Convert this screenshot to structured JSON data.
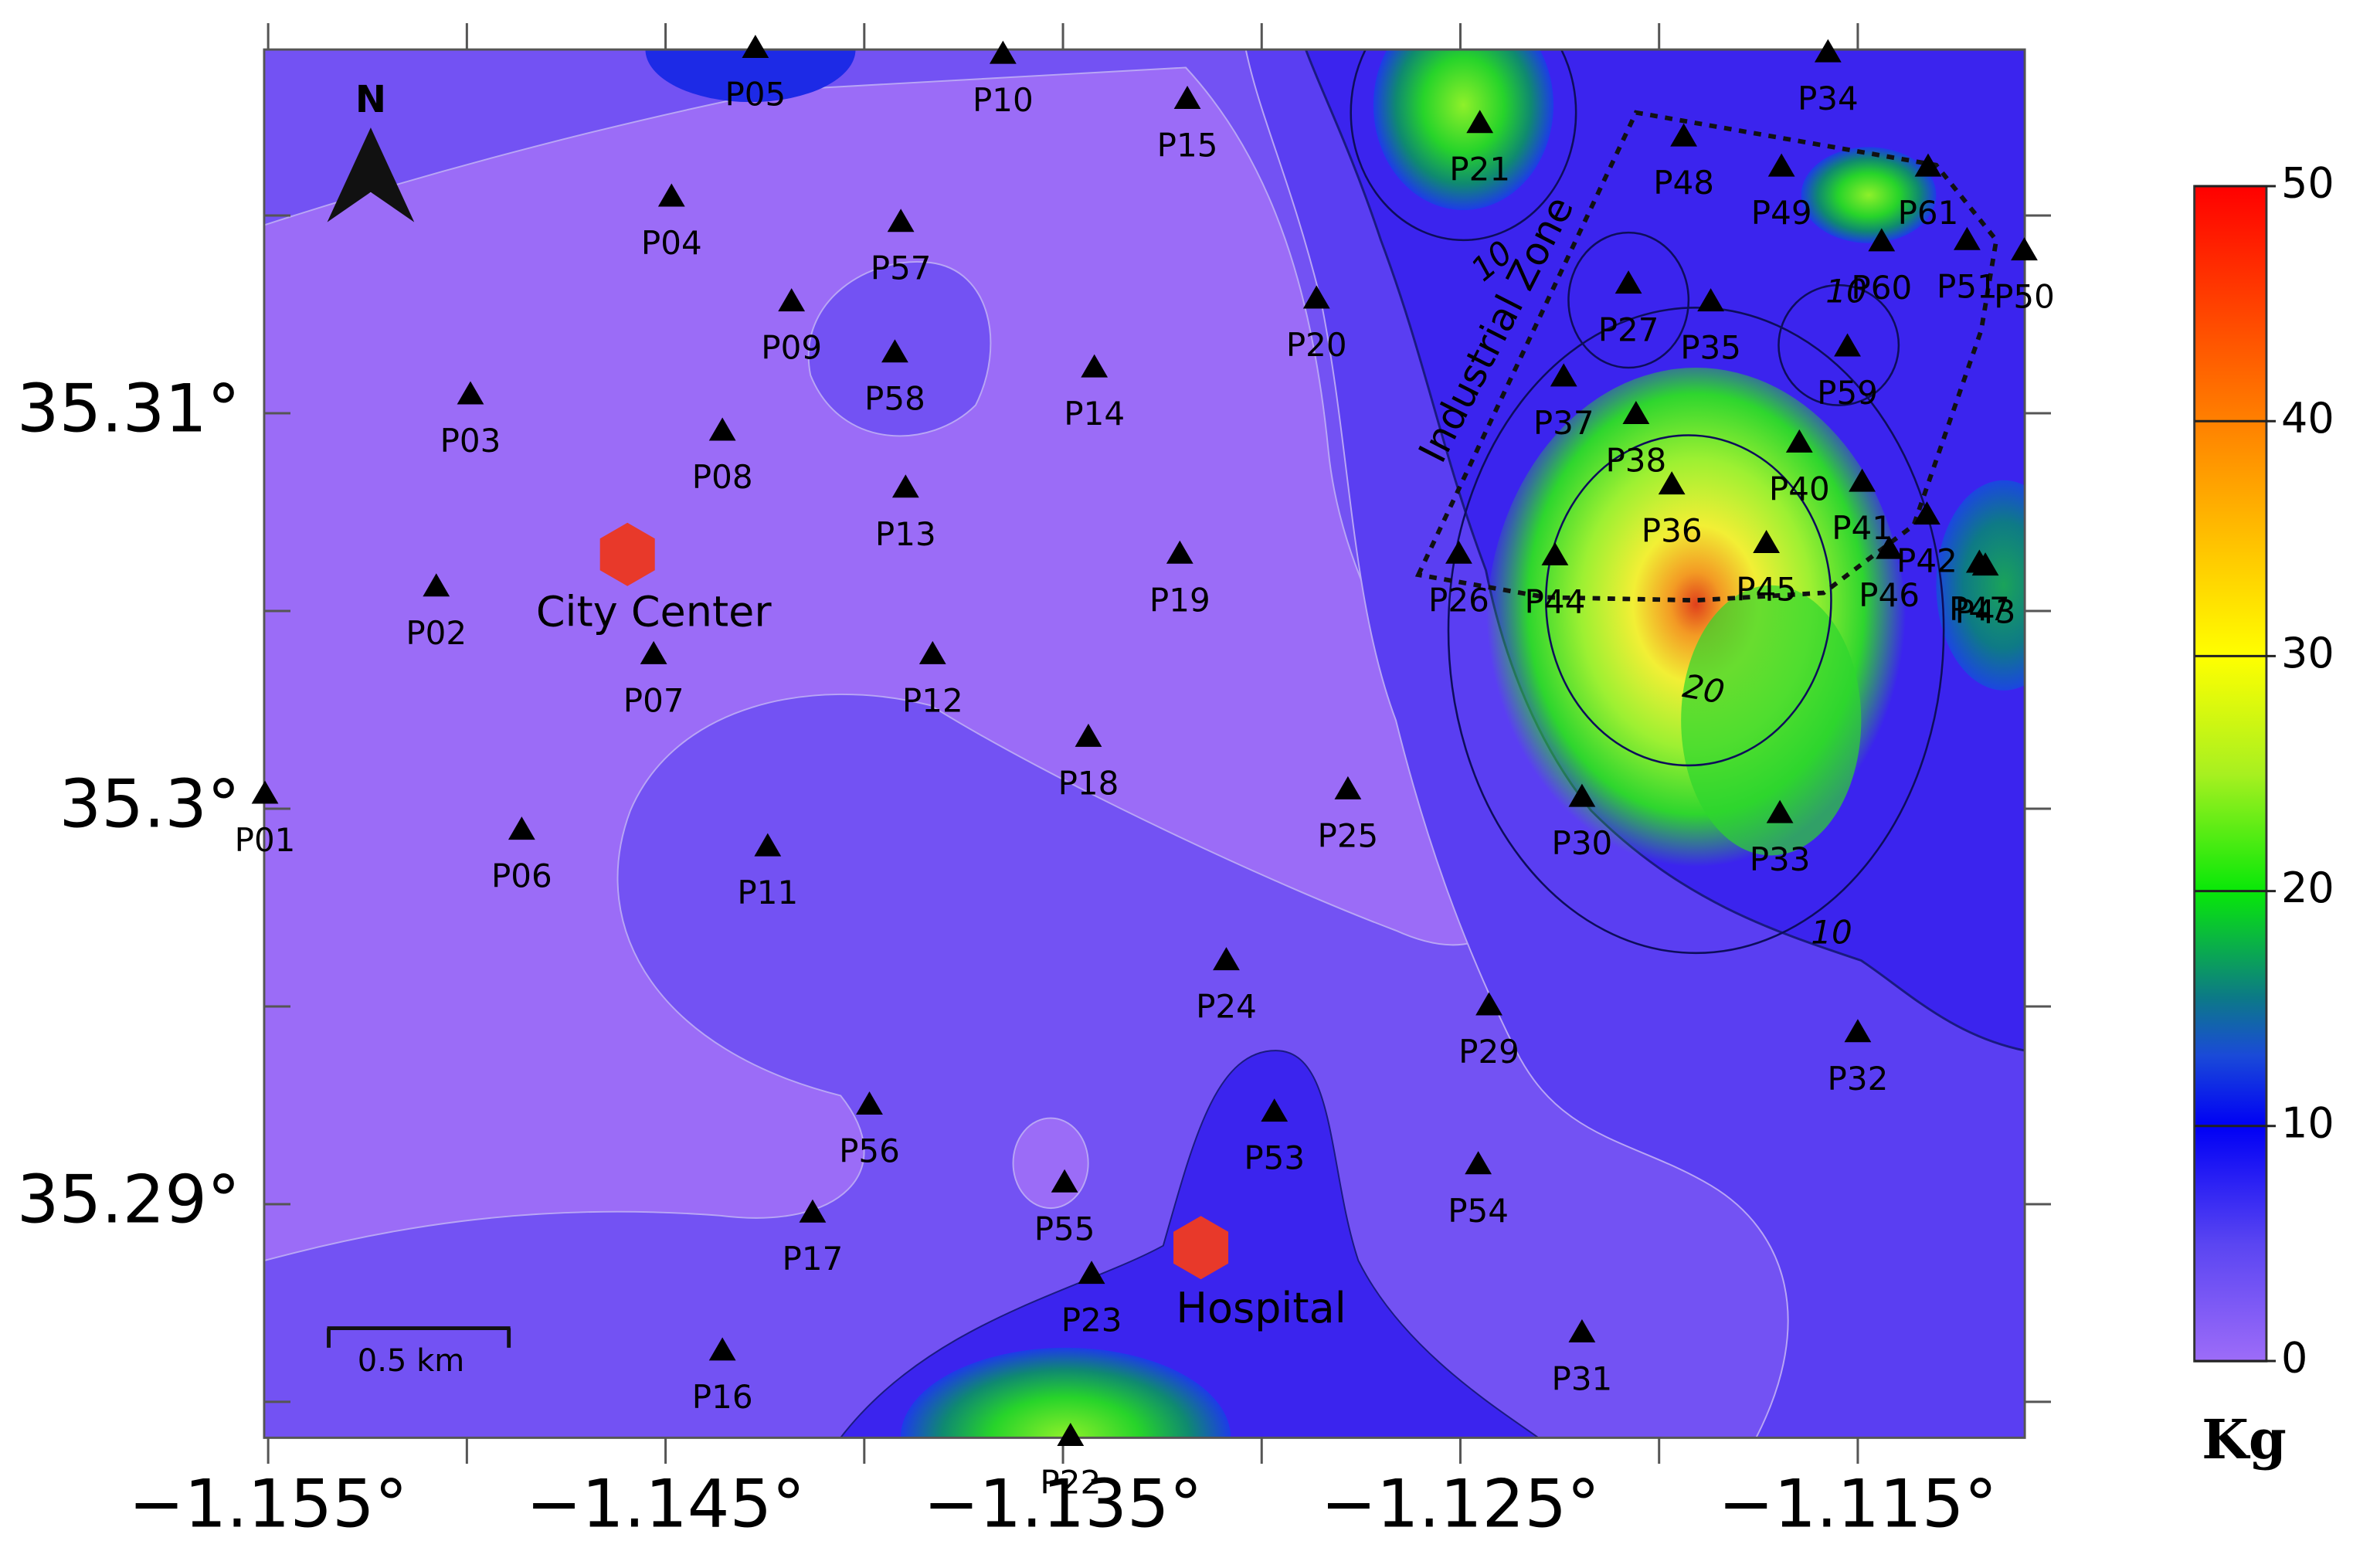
{
  "map": {
    "north": "N",
    "scale_label": "0.5 km",
    "zone_label": "Industrial Zone",
    "xlim": [
      -1.1551,
      -1.1108
    ],
    "ylim": [
      35.2841,
      35.3192
    ],
    "xticks": [
      {
        "value": -1.155,
        "label": "−1.155°"
      },
      {
        "value": -1.145,
        "label": "−1.145°"
      },
      {
        "value": -1.135,
        "label": "−1.135°"
      },
      {
        "value": -1.125,
        "label": "−1.125°"
      },
      {
        "value": -1.115,
        "label": "−1.115°"
      }
    ],
    "xminor": [
      -1.15,
      -1.14,
      -1.13,
      -1.12
    ],
    "yticks": [
      {
        "value": 35.31,
        "label": "35.31°"
      },
      {
        "value": 35.3,
        "label": "35.3°"
      },
      {
        "value": 35.29,
        "label": "35.29°"
      }
    ],
    "yminor": [
      35.285,
      35.295,
      35.305,
      35.315
    ],
    "landmarks": [
      {
        "label": "City Center",
        "lon": -1.14596,
        "lat": 35.30643,
        "color": "#e8392a"
      },
      {
        "label": "Hospital",
        "lon": -1.13153,
        "lat": 35.2889,
        "color": "#e8392a"
      }
    ],
    "contour_labels": [
      10,
      20,
      10,
      10
    ],
    "stations": [
      {
        "label": "P01",
        "lon": -1.15508,
        "lat": 35.30036
      },
      {
        "label": "P02",
        "lon": -1.15077,
        "lat": 35.3056
      },
      {
        "label": "P03",
        "lon": -1.14991,
        "lat": 35.31046
      },
      {
        "label": "P04",
        "lon": -1.14485,
        "lat": 35.31546
      },
      {
        "label": "P05",
        "lon": -1.14274,
        "lat": 35.31922
      },
      {
        "label": "P06",
        "lon": -1.14862,
        "lat": 35.29945
      },
      {
        "label": "P07",
        "lon": -1.1453,
        "lat": 35.30389
      },
      {
        "label": "P08",
        "lon": -1.14357,
        "lat": 35.30954
      },
      {
        "label": "P09",
        "lon": -1.14183,
        "lat": 35.31281
      },
      {
        "label": "P10",
        "lon": -1.13651,
        "lat": 35.31907
      },
      {
        "label": "P11",
        "lon": -1.14243,
        "lat": 35.29903
      },
      {
        "label": "P12",
        "lon": -1.13828,
        "lat": 35.30389
      },
      {
        "label": "P13",
        "lon": -1.13896,
        "lat": 35.3081
      },
      {
        "label": "P14",
        "lon": -1.13421,
        "lat": 35.31114
      },
      {
        "label": "P15",
        "lon": -1.13187,
        "lat": 35.31793
      },
      {
        "label": "P16",
        "lon": -1.14357,
        "lat": 35.28628
      },
      {
        "label": "P17",
        "lon": -1.1413,
        "lat": 35.28977
      },
      {
        "label": "P18",
        "lon": -1.13436,
        "lat": 35.3018
      },
      {
        "label": "P19",
        "lon": -1.13206,
        "lat": 35.30643
      },
      {
        "label": "P20",
        "lon": -1.12862,
        "lat": 35.31288
      },
      {
        "label": "P21",
        "lon": -1.12451,
        "lat": 35.31732
      },
      {
        "label": "P22",
        "lon": -1.13481,
        "lat": 35.28412
      },
      {
        "label": "P23",
        "lon": -1.13428,
        "lat": 35.28822
      },
      {
        "label": "P24",
        "lon": -1.13089,
        "lat": 35.29615
      },
      {
        "label": "P25",
        "lon": -1.12783,
        "lat": 35.30047
      },
      {
        "label": "P26",
        "lon": -1.12504,
        "lat": 35.30643
      },
      {
        "label": "P27",
        "lon": -1.12077,
        "lat": 35.31326
      },
      {
        "label": "P29",
        "lon": -1.12428,
        "lat": 35.29501
      },
      {
        "label": "P30",
        "lon": -1.12194,
        "lat": 35.30028
      },
      {
        "label": "P31",
        "lon": -1.12194,
        "lat": 35.28674
      },
      {
        "label": "P32",
        "lon": -1.115,
        "lat": 35.29433
      },
      {
        "label": "P33",
        "lon": -1.11696,
        "lat": 35.29987
      },
      {
        "label": "P34",
        "lon": -1.11575,
        "lat": 35.31911
      },
      {
        "label": "P35",
        "lon": -1.1187,
        "lat": 35.31281
      },
      {
        "label": "P36",
        "lon": -1.11968,
        "lat": 35.30818
      },
      {
        "label": "P37",
        "lon": -1.1224,
        "lat": 35.31091
      },
      {
        "label": "P38",
        "lon": -1.12058,
        "lat": 35.30996
      },
      {
        "label": "P40",
        "lon": -1.11647,
        "lat": 35.30924
      },
      {
        "label": "P41",
        "lon": -1.11489,
        "lat": 35.30825
      },
      {
        "label": "P42",
        "lon": -1.11326,
        "lat": 35.30742
      },
      {
        "label": "P43",
        "lon": -1.11179,
        "lat": 35.30613
      },
      {
        "label": "P44",
        "lon": -1.12262,
        "lat": 35.30639
      },
      {
        "label": "P45",
        "lon": -1.1173,
        "lat": 35.3067
      },
      {
        "label": "P46",
        "lon": -1.11421,
        "lat": 35.30655
      },
      {
        "label": "P47",
        "lon": -1.11194,
        "lat": 35.3062
      },
      {
        "label": "P48",
        "lon": -1.11938,
        "lat": 35.31698
      },
      {
        "label": "P49",
        "lon": -1.11692,
        "lat": 35.31622
      },
      {
        "label": "P50",
        "lon": -1.11081,
        "lat": 35.3141
      },
      {
        "label": "P51",
        "lon": -1.11225,
        "lat": 35.31436
      },
      {
        "label": "P53",
        "lon": -1.12968,
        "lat": 35.29232
      },
      {
        "label": "P54",
        "lon": -1.12455,
        "lat": 35.29099
      },
      {
        "label": "P55",
        "lon": -1.13496,
        "lat": 35.29053
      },
      {
        "label": "P56",
        "lon": -1.13987,
        "lat": 35.2925
      },
      {
        "label": "P57",
        "lon": -1.13908,
        "lat": 35.31482
      },
      {
        "label": "P58",
        "lon": -1.13923,
        "lat": 35.31152
      },
      {
        "label": "P59",
        "lon": -1.11526,
        "lat": 35.31167
      },
      {
        "label": "P60",
        "lon": -1.1144,
        "lat": 35.31433
      },
      {
        "label": "P61",
        "lon": -1.11323,
        "lat": 35.31622
      }
    ],
    "colorbar": {
      "label": "Kg",
      "lim": [
        0,
        50
      ],
      "ticks": [
        0,
        10,
        20,
        30,
        40,
        50
      ]
    }
  }
}
